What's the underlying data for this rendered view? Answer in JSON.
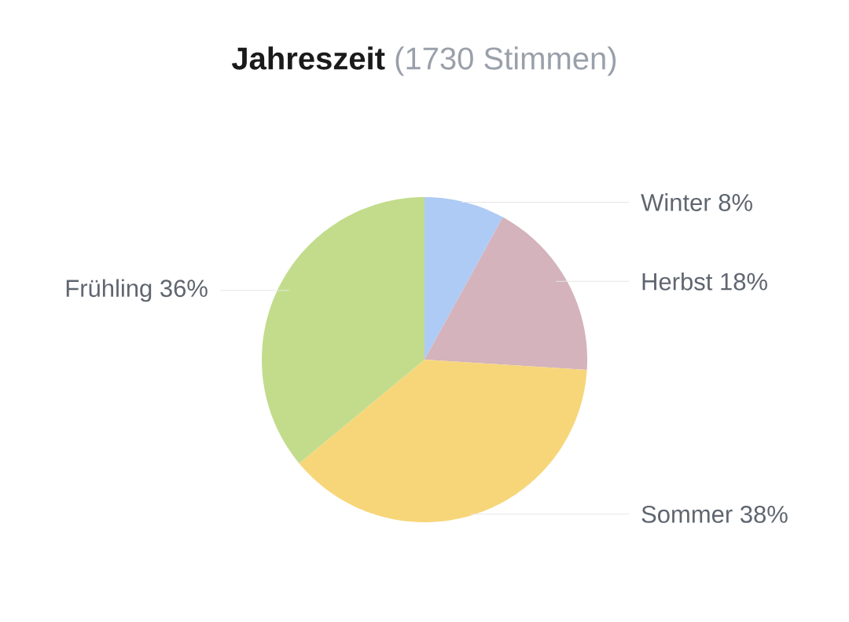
{
  "chart_data": {
    "type": "pie",
    "title": "Jahreszeit",
    "subtitle": "(1730 Stimmen)",
    "categories": [
      "Winter",
      "Herbst",
      "Sommer",
      "Frühling"
    ],
    "values": [
      8,
      18,
      38,
      36
    ],
    "colors": [
      "#aecbf5",
      "#d4b3bc",
      "#f7d67a",
      "#c2dc8c"
    ],
    "value_labels": [
      "8%",
      "18%",
      "38%",
      "36%"
    ]
  }
}
